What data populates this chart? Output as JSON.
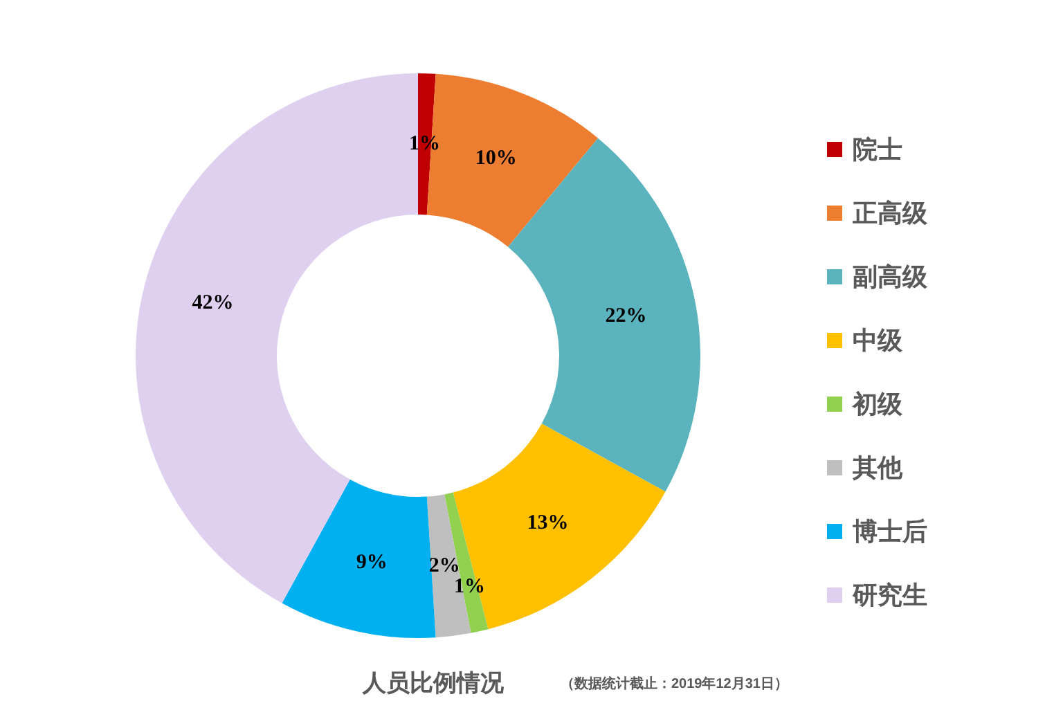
{
  "chart_data": {
    "type": "donut",
    "title": "人员比例情况",
    "annotations": [
      "（数据统计截止：2019年12月31日）"
    ],
    "categories": [
      "院士",
      "正高级",
      "副高级",
      "中级",
      "初级",
      "其他",
      "博士后",
      "研究生"
    ],
    "values": [
      1,
      10,
      22,
      13,
      1,
      2,
      9,
      42
    ],
    "colors": [
      "#c00000",
      "#ed7d31",
      "#5bb3bd",
      "#ffc000",
      "#92d050",
      "#bfbfbf",
      "#00b0f0",
      "#e0d0f0"
    ],
    "value_labels": [
      "1%",
      "10%",
      "22%",
      "13%",
      "1%",
      "2%",
      "9%",
      "42%"
    ],
    "legend": "right"
  }
}
